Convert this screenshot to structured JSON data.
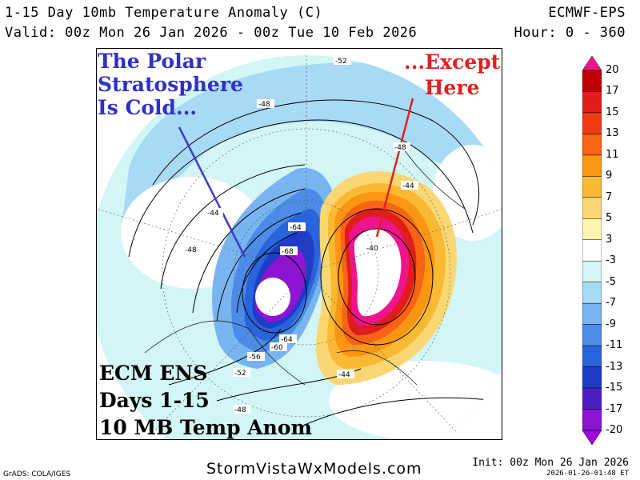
{
  "header": {
    "title_line1": "1-15 Day 10mb Temperature Anomaly (C)",
    "title_line2": "Valid: 00z Mon 26 Jan 2026 - 00z Tue 10 Feb 2026",
    "model": "ECMWF-EPS",
    "hours": "Hour: 0 - 360"
  },
  "annotations": {
    "polar_cold": [
      "The Polar",
      "Stratosphere",
      "Is Cold..."
    ],
    "except_here": [
      "...Except",
      "Here"
    ],
    "ecm_box": [
      "ECM ENS",
      "Days 1-15",
      "10 MB Temp Anom"
    ]
  },
  "contour_labels": [
    "-52",
    "-48",
    "-48",
    "-44",
    "-48",
    "-64",
    "-68",
    "-44",
    "-40",
    "-64",
    "-60",
    "-56",
    "-52",
    "-44",
    "-48"
  ],
  "colorbar": {
    "ticks": [
      "20",
      "17",
      "15",
      "13",
      "11",
      "9",
      "7",
      "5",
      "3",
      "-3",
      "-5",
      "-7",
      "-9",
      "-11",
      "-13",
      "-15",
      "-17",
      "-20"
    ],
    "colors": [
      "#f0148c",
      "#c00000",
      "#e01c1c",
      "#f03c14",
      "#f86414",
      "#fa9614",
      "#fab932",
      "#fad772",
      "#fff5b0",
      "#ffffff",
      "#d2f5f5",
      "#a8daf5",
      "#78b4f0",
      "#4c8ce6",
      "#2864dc",
      "#1e3cc8",
      "#4b1ec3",
      "#8c14d2",
      "#a000dc"
    ]
  },
  "footer": {
    "site": "StormVistaWxModels.com",
    "grads": "GrADS: COLA/IGES",
    "init": "Init: 00z Mon 26 Jan 2026",
    "stamp": "2026-01-26-01:48 ET"
  }
}
